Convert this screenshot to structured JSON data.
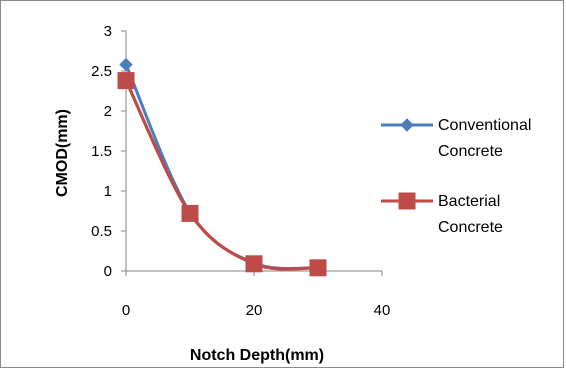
{
  "chart_data": {
    "type": "line",
    "title": "",
    "xlabel": "Notch Depth(mm)",
    "ylabel": "CMOD(mm)",
    "xlim": [
      0,
      40
    ],
    "ylim": [
      0,
      3
    ],
    "x_ticks": [
      "0",
      "20",
      "40"
    ],
    "y_ticks": [
      "0",
      "0.5",
      "1",
      "1.5",
      "2",
      "2.5",
      "3"
    ],
    "grid": false,
    "smoothed": true,
    "legend_position": "right",
    "series": [
      {
        "name_lines": [
          "Conventional",
          "Concrete"
        ],
        "color": "#4a7ebb",
        "marker": "diamond",
        "x": [
          0,
          10,
          20,
          30
        ],
        "y": [
          2.58,
          0.73,
          0.1,
          0.04
        ]
      },
      {
        "name_lines": [
          "Bacterial",
          "Concrete"
        ],
        "color": "#be4b48",
        "marker": "square",
        "x": [
          0,
          10,
          20,
          30
        ],
        "y": [
          2.38,
          0.72,
          0.09,
          0.04
        ]
      }
    ]
  }
}
